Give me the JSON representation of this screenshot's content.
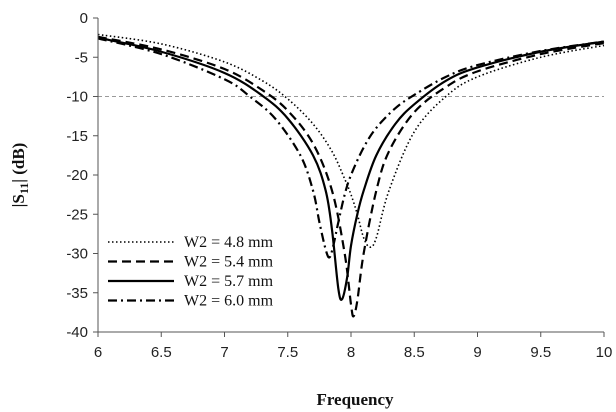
{
  "chart_data": {
    "type": "line",
    "title": "",
    "xlabel": "Frequency",
    "ylabel": "|S11| (dB)",
    "ylabel_main": "|S",
    "ylabel_sub": "11",
    "ylabel_tail": "| (dB)",
    "xlim": [
      6,
      10
    ],
    "ylim": [
      -40,
      0
    ],
    "xticks": [
      "6",
      "6.5",
      "7",
      "7.5",
      "8",
      "8.5",
      "9",
      "9.5",
      "10"
    ],
    "yticks": [
      "0",
      "-5",
      "-10",
      "-15",
      "-20",
      "-25",
      "-30",
      "-35",
      "-40"
    ],
    "reference_line": {
      "y": -10,
      "style": "dashed",
      "color": "#9a9a9a"
    },
    "grid": false,
    "legend_position": "bottom-left",
    "series": [
      {
        "name": "W2 = 4.8 mm",
        "dash": "dotted",
        "x": [
          6.0,
          6.5,
          7.0,
          7.3,
          7.5,
          7.7,
          7.85,
          7.95,
          8.0,
          8.05,
          8.1,
          8.15,
          8.2,
          8.3,
          8.5,
          8.75,
          9.0,
          9.5,
          10.0
        ],
        "y": [
          -2.1,
          -3.3,
          -5.6,
          -8.0,
          -10.3,
          -13.5,
          -17.0,
          -20.5,
          -22.5,
          -25.0,
          -28.0,
          -29.2,
          -28.0,
          -22.0,
          -14.5,
          -10.0,
          -7.5,
          -5.0,
          -3.5
        ]
      },
      {
        "name": "W2 = 5.4 mm",
        "dash": "dashed",
        "x": [
          6.0,
          6.5,
          7.0,
          7.3,
          7.5,
          7.7,
          7.85,
          7.95,
          8.0,
          8.02,
          8.05,
          8.1,
          8.2,
          8.3,
          8.5,
          8.75,
          9.0,
          9.5,
          10.0
        ],
        "y": [
          -2.4,
          -4.0,
          -6.5,
          -9.2,
          -11.8,
          -16.0,
          -22.0,
          -30.0,
          -36.5,
          -38.0,
          -36.0,
          -30.0,
          -22.0,
          -17.0,
          -12.0,
          -8.8,
          -6.8,
          -4.6,
          -3.2
        ]
      },
      {
        "name": "W2 = 5.7 mm",
        "dash": "solid",
        "x": [
          6.0,
          6.5,
          7.0,
          7.3,
          7.5,
          7.7,
          7.8,
          7.85,
          7.9,
          7.93,
          7.97,
          8.0,
          8.05,
          8.1,
          8.2,
          8.35,
          8.5,
          8.75,
          9.0,
          9.5,
          10.0
        ],
        "y": [
          -2.5,
          -4.3,
          -7.0,
          -9.9,
          -12.8,
          -17.5,
          -22.0,
          -27.0,
          -34.5,
          -35.8,
          -33.0,
          -29.0,
          -25.0,
          -22.0,
          -17.5,
          -13.5,
          -11.0,
          -8.0,
          -6.3,
          -4.3,
          -3.0
        ]
      },
      {
        "name": "W2 = 6.0 mm",
        "dash": "dashdot",
        "x": [
          6.0,
          6.5,
          7.0,
          7.2,
          7.4,
          7.6,
          7.7,
          7.75,
          7.8,
          7.83,
          7.86,
          7.9,
          7.95,
          8.0,
          8.1,
          8.2,
          8.35,
          8.5,
          8.75,
          9.0,
          9.5,
          10.0
        ],
        "y": [
          -2.6,
          -4.6,
          -7.8,
          -10.0,
          -12.8,
          -17.5,
          -22.0,
          -26.0,
          -29.5,
          -30.5,
          -29.0,
          -26.0,
          -22.5,
          -20.0,
          -16.5,
          -14.0,
          -11.5,
          -9.8,
          -7.5,
          -6.0,
          -4.2,
          -3.0
        ]
      }
    ]
  }
}
